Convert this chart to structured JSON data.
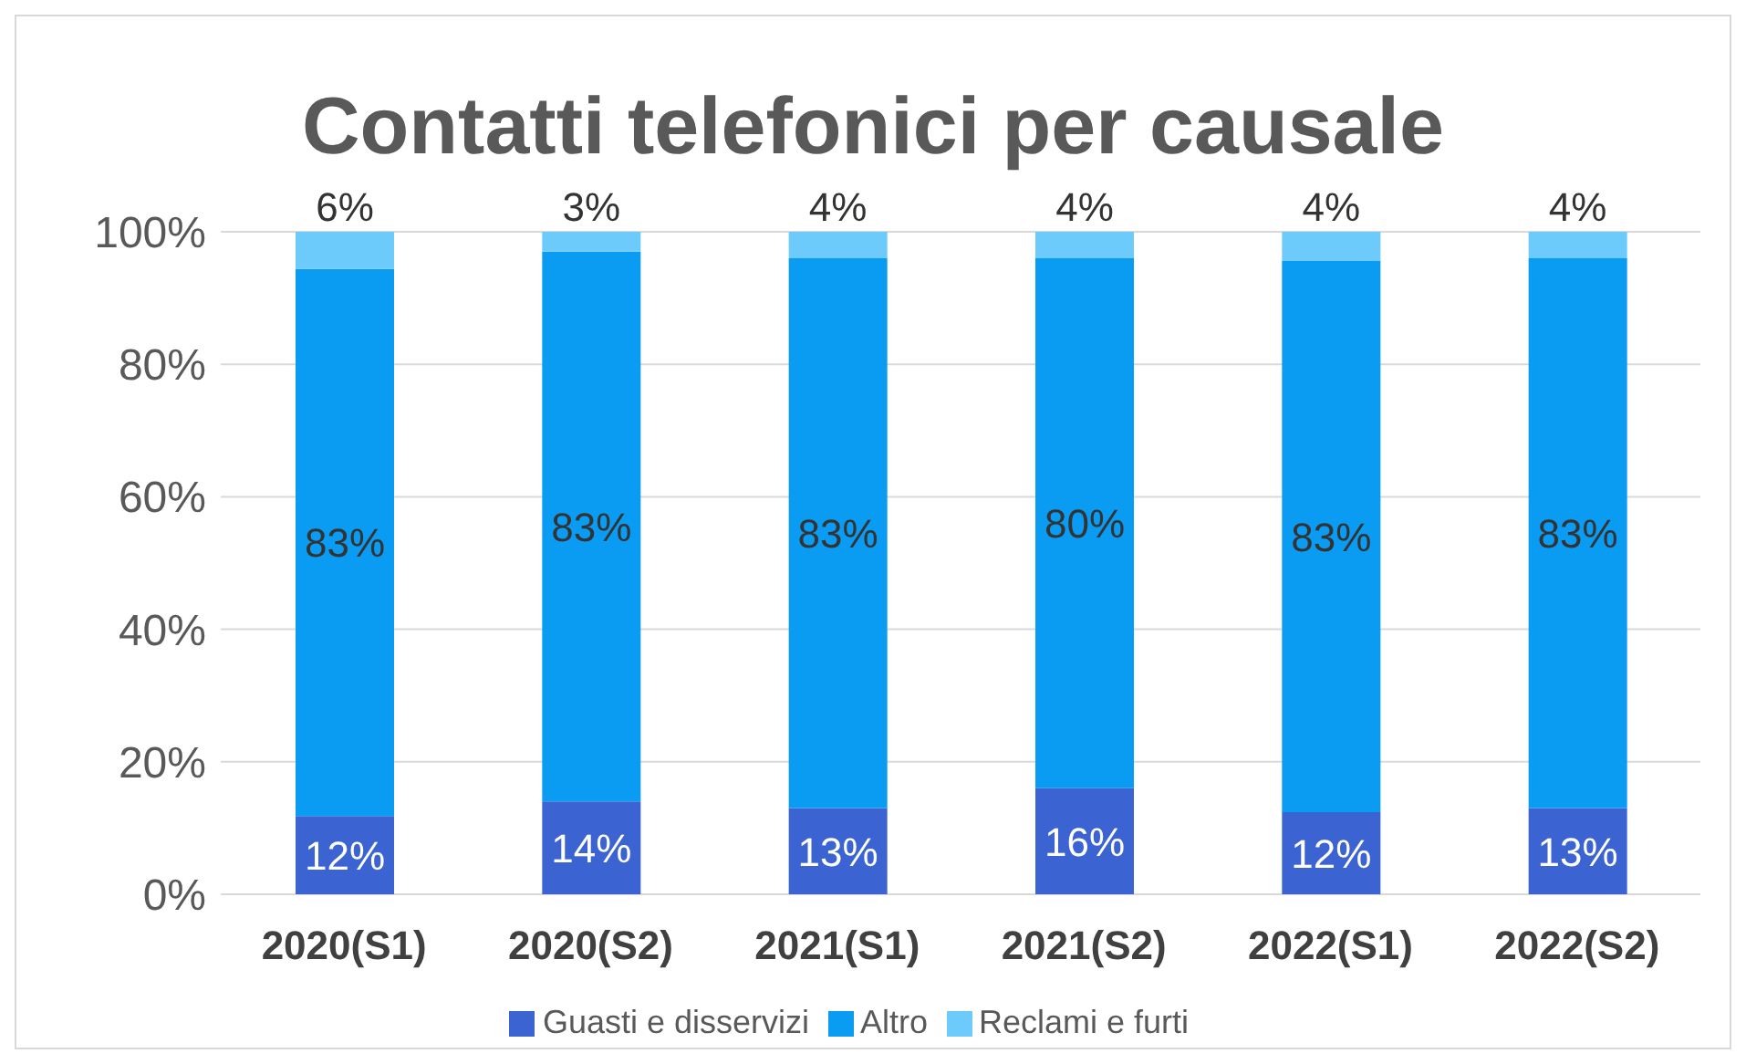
{
  "chart_data": {
    "type": "bar",
    "title": "Contatti telefonici per causale",
    "categories": [
      "2020(S1)",
      "2020(S2)",
      "2021(S1)",
      "2021(S2)",
      "2022(S1)",
      "2022(S2)"
    ],
    "stacked": true,
    "series": [
      {
        "name": "Guasti e disservizi",
        "color": "#3b63d1",
        "values": [
          11.8,
          14,
          13,
          16,
          12.4,
          13
        ],
        "value_labels": [
          "12%",
          "14%",
          "13%",
          "16%",
          "12%",
          "13%"
        ]
      },
      {
        "name": "Altro",
        "color": "#0a9bf2",
        "values": [
          82.6,
          83,
          83,
          80,
          83.2,
          83
        ],
        "value_labels": [
          "83%",
          "83%",
          "83%",
          "80%",
          "83%",
          "83%"
        ]
      },
      {
        "name": "Reclami e furti",
        "color": "#6dcbfb",
        "values": [
          5.6,
          3,
          4,
          4,
          4.4,
          4
        ],
        "value_labels": [
          "6%",
          "3%",
          "4%",
          "4%",
          "4%",
          "4%"
        ]
      }
    ],
    "ylim": [
      0,
      100
    ],
    "yticks": [
      {
        "value": 0,
        "label": "0%"
      },
      {
        "value": 20,
        "label": "20%"
      },
      {
        "value": 40,
        "label": "40%"
      },
      {
        "value": 60,
        "label": "60%"
      },
      {
        "value": 80,
        "label": "80%"
      },
      {
        "value": 100,
        "label": "100%"
      }
    ],
    "grid": "y",
    "legend": "bottom"
  }
}
